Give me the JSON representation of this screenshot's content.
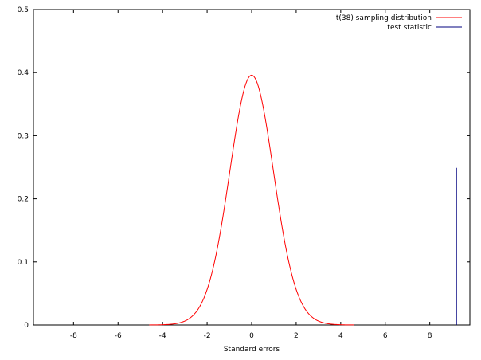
{
  "chart_data": {
    "type": "line",
    "title": "",
    "xlabel": "Standard errors",
    "ylabel": "",
    "xlim": [
      -9.8,
      9.8
    ],
    "ylim": [
      0,
      0.5
    ],
    "x_ticks": [
      -8,
      -6,
      -4,
      -2,
      0,
      2,
      4,
      6,
      8
    ],
    "y_ticks": [
      0,
      0.1,
      0.2,
      0.3,
      0.4,
      0.5
    ],
    "x_tick_labels": [
      "-8",
      "-6",
      "-4",
      "-2",
      "0",
      "2",
      "4",
      "6",
      "8"
    ],
    "y_tick_labels": [
      "0",
      "0.1",
      "0.2",
      "0.3",
      "0.4",
      "0.5"
    ],
    "grid": false,
    "legend_position": "top-right",
    "series": [
      {
        "name": "t(38) sampling distribution",
        "color": "#ff0000",
        "kind": "density",
        "df": 38,
        "x_range": [
          -4.6,
          4.6
        ],
        "peak": 0.396
      },
      {
        "name": "test statistic",
        "color": "#00007f",
        "kind": "vertical-line",
        "x": 9.2,
        "y": 0.249
      }
    ]
  }
}
